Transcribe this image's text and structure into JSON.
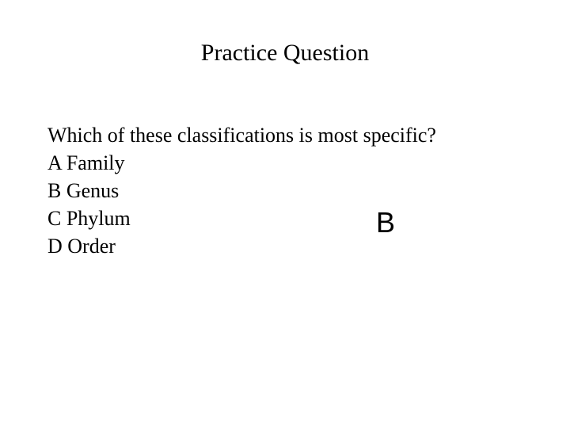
{
  "title": "Practice Question",
  "question": "Which of these classifications is most specific?",
  "options": {
    "a": "A Family",
    "b": "B Genus",
    "c": "C Phylum",
    "d": "D Order"
  },
  "answer": "B",
  "colors": {
    "background": "#ffffff",
    "text": "#000000"
  },
  "typography": {
    "title_fontsize": 30,
    "body_fontsize": 26,
    "answer_fontsize": 36,
    "title_font": "Georgia, Times New Roman, serif",
    "body_font": "Georgia, Times New Roman, serif",
    "answer_font": "Arial, Helvetica, sans-serif"
  }
}
